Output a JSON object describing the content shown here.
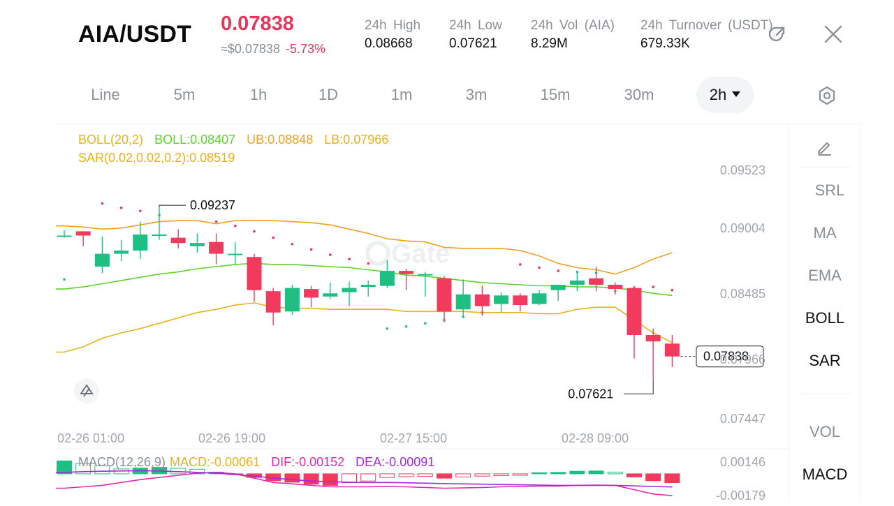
{
  "header": {
    "pair": "AIA/USDT",
    "price": "0.07838",
    "fiat_price": "≈$0.07838",
    "change": "-5.73%",
    "stats": [
      {
        "label": "24h High",
        "value": "0.08668"
      },
      {
        "label": "24h Low",
        "value": "0.07621"
      },
      {
        "label": "24h Vol (AIA)",
        "value": "8.29M"
      },
      {
        "label": "24h Turnover (USDT)",
        "value": "679.33K"
      }
    ],
    "icons": {
      "share": "share-icon",
      "close": "close-icon"
    }
  },
  "tabs": [
    "Line",
    "5m",
    "1h",
    "1D",
    "1m",
    "3m",
    "15m",
    "30m",
    "2h"
  ],
  "active_tab": "2h",
  "sidebar": {
    "items": [
      "SRL",
      "MA",
      "EMA",
      "BOLL",
      "SAR",
      "VOL",
      "MACD"
    ],
    "active": [
      "BOLL",
      "SAR",
      "MACD"
    ]
  },
  "indicators": {
    "boll": {
      "name": "BOLL(20,2)",
      "mid": "BOLL:0.08407",
      "ub": "UB:0.08848",
      "lb": "LB:0.07966"
    },
    "sar": "SAR(0.02,0.02,0.2):0.08519",
    "macd": {
      "name": "MACD(12,26,9)",
      "macd": "MACD:-0.00061",
      "dif": "DIF:-0.00152",
      "dea": "DEA:-0.00091"
    }
  },
  "y_axis": [
    "0.09523",
    "0.09004",
    "0.08485",
    "0.07966",
    "0.07447"
  ],
  "macd_axis": [
    "0.00146",
    "-0.00179"
  ],
  "x_axis": [
    "02-26 01:00",
    "02-26 19:00",
    "02-27 15:00",
    "02-28 09:00"
  ],
  "annotations": {
    "high": "0.09237",
    "low": "0.07621",
    "last": "0.07838"
  },
  "watermark": "Gate",
  "colors": {
    "up": "#1fbf83",
    "down": "#f23a5e",
    "mid": "#5ed12c",
    "band": "#f0a020",
    "lb": "#e9b21a",
    "sar": "#e8365a",
    "dif": "#e02ab0",
    "dea": "#a22bd8"
  },
  "chart_data": {
    "type": "candlestick",
    "ylim": [
      0.0727,
      0.0975
    ],
    "candles": [
      [
        0.0897,
        0.0897,
        0.0895,
        0.0902
      ],
      [
        0.0901,
        0.0897,
        0.0887,
        0.09
      ],
      [
        0.0868,
        0.088,
        0.0862,
        0.0896
      ],
      [
        0.088,
        0.0883,
        0.0873,
        0.0893
      ],
      [
        0.0883,
        0.0898,
        0.0875,
        0.091
      ],
      [
        0.0898,
        0.0898,
        0.0893,
        0.0924
      ],
      [
        0.0895,
        0.089,
        0.0885,
        0.0903
      ],
      [
        0.0887,
        0.089,
        0.0881,
        0.0899
      ],
      [
        0.0891,
        0.088,
        0.087,
        0.0899
      ],
      [
        0.088,
        0.088,
        0.087,
        0.0891
      ],
      [
        0.0877,
        0.0846,
        0.0835,
        0.088
      ],
      [
        0.0845,
        0.0825,
        0.0813,
        0.0848
      ],
      [
        0.0826,
        0.0848,
        0.0823,
        0.0851
      ],
      [
        0.0847,
        0.0839,
        0.083,
        0.085
      ],
      [
        0.084,
        0.0843,
        0.0838,
        0.0853
      ],
      [
        0.0844,
        0.0848,
        0.0831,
        0.0854
      ],
      [
        0.0849,
        0.0851,
        0.084,
        0.0855
      ],
      [
        0.085,
        0.0864,
        0.0848,
        0.0874
      ],
      [
        0.0864,
        0.0861,
        0.0846,
        0.0866
      ],
      [
        0.0861,
        0.0861,
        0.084,
        0.0863
      ],
      [
        0.0857,
        0.0826,
        0.0816,
        0.0859
      ],
      [
        0.0828,
        0.0842,
        0.0822,
        0.0856
      ],
      [
        0.0842,
        0.0831,
        0.0822,
        0.085
      ],
      [
        0.0833,
        0.0841,
        0.0825,
        0.0844
      ],
      [
        0.0841,
        0.0832,
        0.0826,
        0.0843
      ],
      [
        0.0833,
        0.0843,
        0.0832,
        0.0846
      ],
      [
        0.0846,
        0.0851,
        0.0836,
        0.0851
      ],
      [
        0.0851,
        0.0855,
        0.0845,
        0.0864
      ],
      [
        0.0857,
        0.0851,
        0.0845,
        0.0868
      ],
      [
        0.0851,
        0.0847,
        0.0842,
        0.0853
      ],
      [
        0.0848,
        0.0804,
        0.0782,
        0.085
      ],
      [
        0.0804,
        0.0798,
        0.0762,
        0.081
      ],
      [
        0.0796,
        0.0784,
        0.0774,
        0.0804
      ]
    ],
    "boll_ub": [
      0.0906,
      0.0905,
      0.0903,
      0.0904,
      0.0907,
      0.091,
      0.0911,
      0.0911,
      0.0908,
      0.0911,
      0.0911,
      0.0911,
      0.091,
      0.0909,
      0.0907,
      0.0903,
      0.0899,
      0.0894,
      0.0892,
      0.0891,
      0.0886,
      0.0885,
      0.0885,
      0.0885,
      0.0883,
      0.0878,
      0.0871,
      0.0867,
      0.0865,
      0.0861,
      0.0867,
      0.0875,
      0.0881
    ],
    "boll_mid": [
      0.0847,
      0.0849,
      0.0852,
      0.0855,
      0.0858,
      0.0861,
      0.0863,
      0.0866,
      0.0868,
      0.087,
      0.0871,
      0.087,
      0.087,
      0.0869,
      0.0868,
      0.0867,
      0.0865,
      0.0863,
      0.086,
      0.0859,
      0.0857,
      0.0855,
      0.0853,
      0.0852,
      0.0851,
      0.085,
      0.085,
      0.0849,
      0.0849,
      0.0848,
      0.0846,
      0.0843,
      0.0841
    ],
    "boll_lb": [
      0.0788,
      0.0793,
      0.0801,
      0.0806,
      0.081,
      0.0815,
      0.082,
      0.0825,
      0.0828,
      0.0832,
      0.0834,
      0.083,
      0.0829,
      0.0829,
      0.0828,
      0.0828,
      0.0828,
      0.0828,
      0.0826,
      0.0826,
      0.0826,
      0.0826,
      0.0825,
      0.0825,
      0.0825,
      0.0824,
      0.0824,
      0.0828,
      0.083,
      0.083,
      0.0818,
      0.0806,
      0.0797
    ],
    "sar": [
      0.0856,
      null,
      0.0927,
      0.0923,
      0.092,
      0.0916,
      null,
      null,
      0.091,
      0.0906,
      0.0901,
      0.0895,
      0.0889,
      0.0884,
      0.0879,
      0.0875,
      0.0871,
      0.081,
      0.0812,
      0.0815,
      0.0818,
      0.0821,
      0.0825,
      null,
      0.087,
      0.0867,
      0.0864,
      0.0863,
      0.0862,
      0.0845,
      0.0848,
      0.0849,
      0.0846
    ],
    "macd_hist": [
      0.0009,
      0.00073,
      0.00056,
      0.00034,
      0.0004,
      0.00045,
      0.00038,
      0.00032,
      0.00012,
      -5e-05,
      -0.00025,
      -0.00048,
      -0.00058,
      -0.00072,
      -0.0008,
      -0.00061,
      -0.0005,
      -0.00025,
      -0.0002,
      -0.00018,
      -0.0003,
      -0.00022,
      -0.00016,
      -0.00012,
      -0.0001,
      8e-05,
      0.0001,
      0.00018,
      0.0002,
      0.00012,
      -0.00022,
      -0.00048,
      -0.00061
    ],
    "dif": [
      -0.001,
      -0.0009,
      -0.0008,
      -0.0006,
      -0.0004,
      -0.00025,
      -0.0001,
      5e-05,
      0.0001,
      0.0,
      -0.0003,
      -0.0006,
      -0.0007,
      -0.0008,
      -0.0009,
      -0.0009,
      -0.0009,
      -0.00088,
      -0.0009,
      -0.00095,
      -0.001,
      -0.00098,
      -0.00095,
      -0.0009,
      -0.00088,
      -0.00085,
      -0.00085,
      -0.0008,
      -0.00078,
      -0.0008,
      -0.0011,
      -0.0014,
      -0.00152
    ],
    "dea": [
      0.0001,
      0.00015,
      0.00018,
      0.0002,
      0.00022,
      0.0002,
      0.00015,
      0.0001,
      5e-05,
      -5e-05,
      -0.00015,
      -0.0003,
      -0.0004,
      -0.0005,
      -0.00055,
      -0.00058,
      -0.0006,
      -0.0006,
      -0.00062,
      -0.00065,
      -0.00068,
      -0.0007,
      -0.00072,
      -0.00074,
      -0.00076,
      -0.00078,
      -0.0008,
      -0.0008,
      -0.0008,
      -0.0008,
      -0.00084,
      -0.00088,
      -0.00091
    ],
    "macd_ylim": [
      -0.0018,
      0.0015
    ]
  }
}
